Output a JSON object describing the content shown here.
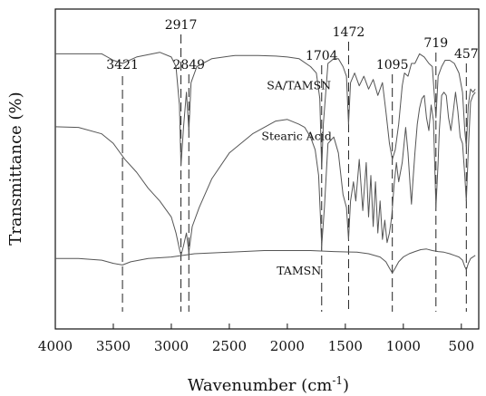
{
  "chart_data": {
    "type": "line",
    "xlabel": "Wavenumber (cm",
    "xlabel_sup": "-1",
    "xlabel_close": ")",
    "ylabel": "Transmittance (%)",
    "xlim": [
      4000,
      350
    ],
    "x_direction": "reversed",
    "y_axis": "unlabeled, curves vertically offset",
    "x_ticks": [
      4000,
      3500,
      3000,
      2500,
      2000,
      1500,
      1000,
      500
    ],
    "grid": false,
    "colors": {
      "curve": "#555555",
      "axis": "#111111",
      "marker": "#222222"
    },
    "peak_markers": [
      {
        "wavenumber": 3421,
        "label": "3421"
      },
      {
        "wavenumber": 2917,
        "label": "2917"
      },
      {
        "wavenumber": 2849,
        "label": "2849"
      },
      {
        "wavenumber": 1704,
        "label": "1704"
      },
      {
        "wavenumber": 1472,
        "label": "1472"
      },
      {
        "wavenumber": 1095,
        "label": "1095"
      },
      {
        "wavenumber": 719,
        "label": "719"
      },
      {
        "wavenumber": 457,
        "label": "457"
      }
    ],
    "series": [
      {
        "name": "SA/TAMSN",
        "x": [
          4000,
          3800,
          3600,
          3500,
          3421,
          3300,
          3100,
          3000,
          2960,
          2930,
          2917,
          2895,
          2870,
          2849,
          2830,
          2780,
          2650,
          2450,
          2250,
          2100,
          2000,
          1900,
          1800,
          1750,
          1720,
          1704,
          1690,
          1650,
          1600,
          1560,
          1520,
          1490,
          1472,
          1455,
          1420,
          1380,
          1340,
          1300,
          1260,
          1220,
          1180,
          1150,
          1120,
          1095,
          1070,
          1040,
          1010,
          990,
          960,
          930,
          900,
          860,
          820,
          780,
          750,
          719,
          700,
          670,
          640,
          600,
          560,
          520,
          490,
          470,
          457,
          440,
          420,
          400,
          380
        ],
        "y": [
          86,
          86,
          86,
          84,
          83,
          85,
          86.5,
          85,
          82,
          70,
          51,
          63,
          74,
          62,
          77,
          82,
          84.5,
          85.5,
          85.5,
          85.3,
          85,
          84.5,
          82,
          80,
          72,
          50,
          64,
          83,
          84.5,
          84.5,
          82,
          79,
          64,
          77,
          80,
          76,
          79,
          75,
          78,
          73,
          77,
          68,
          58,
          53,
          56,
          64,
          76,
          80,
          79,
          83,
          83,
          86,
          85,
          83,
          82,
          66,
          79,
          82,
          84,
          84,
          83,
          80,
          74,
          62,
          57,
          70,
          75,
          74,
          75
        ]
      },
      {
        "name": "Stearic Acid",
        "x": [
          4000,
          3800,
          3600,
          3500,
          3400,
          3300,
          3200,
          3100,
          3000,
          2960,
          2930,
          2917,
          2895,
          2870,
          2849,
          2820,
          2760,
          2650,
          2500,
          2300,
          2100,
          2000,
          1900,
          1850,
          1800,
          1760,
          1730,
          1704,
          1680,
          1650,
          1600,
          1560,
          1520,
          1490,
          1472,
          1455,
          1430,
          1410,
          1380,
          1350,
          1320,
          1300,
          1280,
          1260,
          1240,
          1220,
          1200,
          1180,
          1160,
          1140,
          1120,
          1100,
          1080,
          1060,
          1040,
          1010,
          980,
          960,
          940,
          930,
          920,
          900,
          880,
          860,
          840,
          820,
          800,
          780,
          760,
          740,
          719,
          700,
          690,
          670,
          650,
          630,
          610,
          590,
          570,
          550,
          530,
          510,
          490,
          470,
          457,
          440,
          420,
          400,
          380
        ],
        "y": [
          63.2,
          63,
          61,
          58,
          53,
          49,
          44,
          40,
          35,
          30,
          25,
          23,
          26,
          30,
          24,
          32,
          38,
          47,
          55,
          61,
          65,
          65.5,
          64,
          63,
          60,
          56,
          48,
          26,
          38,
          58,
          60,
          55,
          42,
          38,
          28,
          40,
          46,
          40,
          53,
          37,
          52,
          35,
          48,
          32,
          46,
          30,
          40,
          28,
          34,
          27,
          30,
          35,
          45,
          52,
          46,
          52,
          63,
          55,
          44,
          39,
          45,
          55,
          64,
          69,
          72,
          73,
          66,
          62,
          70,
          65,
          38,
          52,
          62,
          73,
          74,
          73,
          66,
          62,
          68,
          74,
          68,
          60,
          58,
          48,
          40,
          56,
          71,
          73,
          74
        ]
      },
      {
        "name": "TAMSN",
        "x": [
          4000,
          3800,
          3600,
          3500,
          3421,
          3350,
          3200,
          3000,
          2800,
          2500,
          2200,
          2000,
          1800,
          1600,
          1400,
          1300,
          1200,
          1150,
          1120,
          1095,
          1070,
          1040,
          1000,
          950,
          900,
          850,
          800,
          750,
          700,
          650,
          600,
          560,
          520,
          490,
          470,
          457,
          440,
          420,
          400,
          380
        ],
        "y": [
          22,
          22,
          21.5,
          20.5,
          20,
          21,
          22,
          22.5,
          23.5,
          24,
          24.5,
          24.5,
          24.5,
          24.2,
          24,
          23.5,
          22.5,
          21,
          19,
          17.5,
          19,
          21,
          22.5,
          23.5,
          24.2,
          24.8,
          25,
          24.5,
          24.2,
          24,
          23.5,
          23,
          22.5,
          21.5,
          19.5,
          18.5,
          20.5,
          22,
          22.5,
          23
        ]
      }
    ],
    "series_labels": [
      {
        "series": "SA/TAMSN",
        "x": 1900,
        "y": 75
      },
      {
        "series": "Stearic Acid",
        "x": 1920,
        "y": 59
      },
      {
        "series": "TAMSN",
        "x": 1900,
        "y": 17
      }
    ]
  }
}
